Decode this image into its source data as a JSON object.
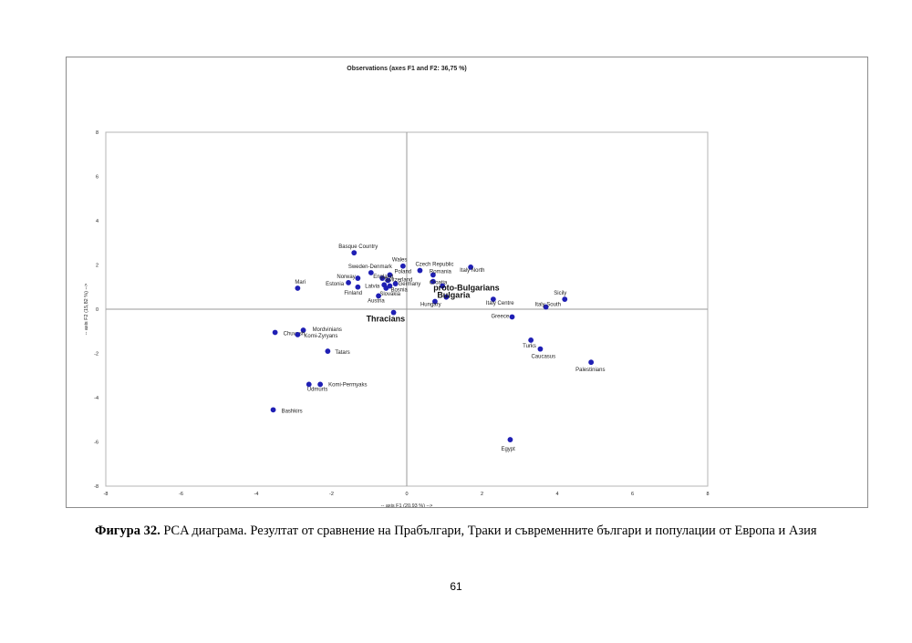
{
  "chart_data": {
    "type": "scatter",
    "title": "Observations (axes F1 and F2: 36,75 %)",
    "xlabel": "-- axis F1 (20,93 %) -->",
    "ylabel": "-- axis F2 (15,82 %) -->",
    "xlim": [
      -8,
      8
    ],
    "ylim": [
      -8,
      8
    ],
    "xticks": [
      "-8",
      "-6",
      "-4",
      "-2",
      "0",
      "2",
      "4",
      "6",
      "8"
    ],
    "yticks": [
      "8",
      "6",
      "4",
      "2",
      "0",
      "-2",
      "-4",
      "-6",
      "-8"
    ],
    "grid": false,
    "marker_color": "#1f1fb4",
    "points": [
      {
        "label": "Basque Country",
        "x": -1.4,
        "y": 2.55
      },
      {
        "label": "Wales",
        "x": -0.1,
        "y": 1.95
      },
      {
        "label": "Czech Republic",
        "x": 0.35,
        "y": 1.75
      },
      {
        "label": "Italy North",
        "x": 1.7,
        "y": 1.9
      },
      {
        "label": "Sweden-Denmark",
        "x": -0.95,
        "y": 1.65
      },
      {
        "label": "Poland",
        "x": -0.45,
        "y": 1.55
      },
      {
        "label": "Romania",
        "x": 0.7,
        "y": 1.55
      },
      {
        "label": "Norway",
        "x": -1.3,
        "y": 1.4
      },
      {
        "label": "England",
        "x": -0.65,
        "y": 1.4
      },
      {
        "label": "Switzerland",
        "x": -0.5,
        "y": 1.3
      },
      {
        "label": "Croatia",
        "x": 0.7,
        "y": 1.25
      },
      {
        "label": "Estonia",
        "x": -1.55,
        "y": 1.2
      },
      {
        "label": "Germany",
        "x": -0.3,
        "y": 1.15
      },
      {
        "label": "Latvia",
        "x": -0.6,
        "y": 1.1
      },
      {
        "label": "Bosnia",
        "x": -0.45,
        "y": 1.05
      },
      {
        "label": "Finland",
        "x": -1.3,
        "y": 1.0
      },
      {
        "label": "Slovakia",
        "x": -0.55,
        "y": 0.95
      },
      {
        "label": "Mari",
        "x": -2.9,
        "y": 0.95
      },
      {
        "label": "proto-Bulgarians",
        "x": 0.95,
        "y": 1.05
      },
      {
        "label": "Austria",
        "x": -0.75,
        "y": 0.6
      },
      {
        "label": "Bulgaria",
        "x": 1.05,
        "y": 0.55
      },
      {
        "label": "Hungary",
        "x": 0.75,
        "y": 0.35
      },
      {
        "label": "Italy Centre",
        "x": 2.3,
        "y": 0.45
      },
      {
        "label": "Sicily",
        "x": 4.2,
        "y": 0.45
      },
      {
        "label": "Italy South",
        "x": 3.7,
        "y": 0.1
      },
      {
        "label": "Greece",
        "x": 2.8,
        "y": -0.35
      },
      {
        "label": "Thracians",
        "x": -0.35,
        "y": -0.15
      },
      {
        "label": "Mordvinians",
        "x": -2.75,
        "y": -0.95
      },
      {
        "label": "Chuvash",
        "x": -3.5,
        "y": -1.05
      },
      {
        "label": "Komi-Zyryans",
        "x": -2.9,
        "y": -1.15
      },
      {
        "label": "Tatars",
        "x": -2.1,
        "y": -1.9
      },
      {
        "label": "Turks",
        "x": 3.3,
        "y": -1.4
      },
      {
        "label": "Caucasus",
        "x": 3.55,
        "y": -1.8
      },
      {
        "label": "Palestinians",
        "x": 4.9,
        "y": -2.4
      },
      {
        "label": "Komi-Permyaks",
        "x": -2.3,
        "y": -3.4
      },
      {
        "label": "Udmurts",
        "x": -2.6,
        "y": -3.4
      },
      {
        "label": "Bashkirs",
        "x": -3.55,
        "y": -4.55
      },
      {
        "label": "Egypt",
        "x": 2.75,
        "y": -5.9
      }
    ]
  },
  "caption": {
    "label": "Фигура 32.",
    "text": " PCA диаграма. Резултат от сравнение на Прабългари, Траки и съвременните българи и популации от Европа и Азия"
  },
  "page_number": "61"
}
